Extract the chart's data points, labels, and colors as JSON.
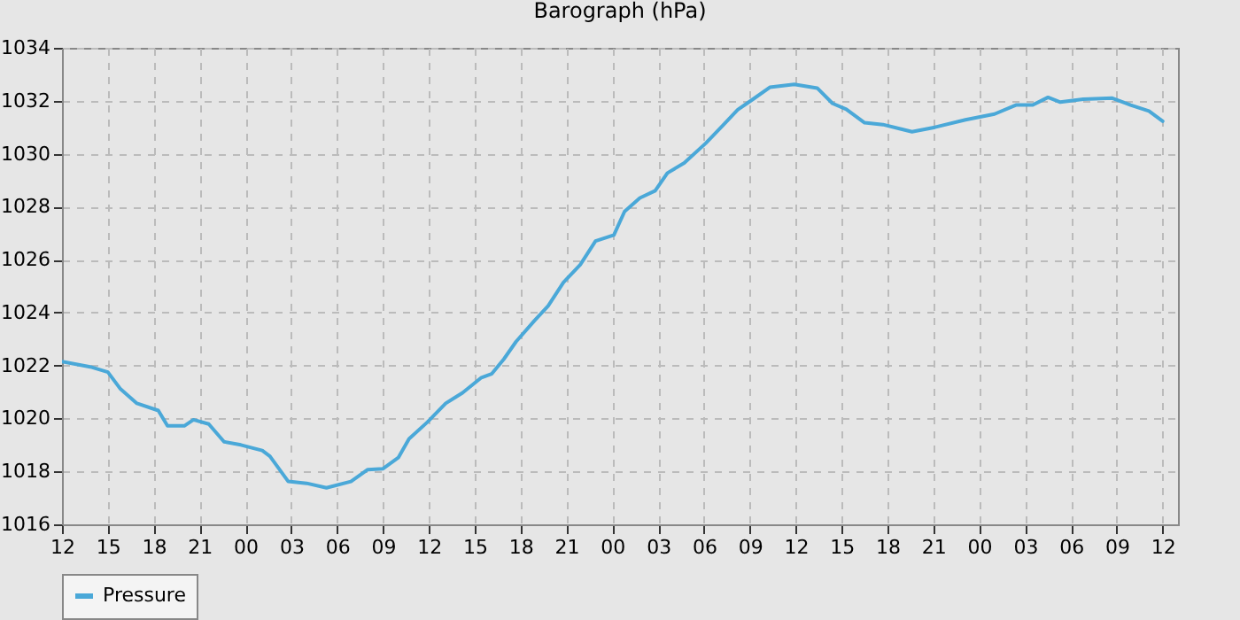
{
  "chart_data": {
    "type": "line",
    "title": "Barograph (hPa)",
    "x": [
      12,
      13.85,
      15,
      15.8,
      16.9,
      18.3,
      18.9,
      20.0,
      20.6,
      21.6,
      22.6,
      23.7,
      25.1,
      25.6,
      26.8,
      28.0,
      29.3,
      30.9,
      32.0,
      33.0,
      34.0,
      34.7,
      35.9,
      37.1,
      38.2,
      39.4,
      40.1,
      40.9,
      41.7,
      42.9,
      43.8,
      44.8,
      45.9,
      46.9,
      48.1,
      48.8,
      49.8,
      50.8,
      51.6,
      52.7,
      54.1,
      55.2,
      56.2,
      57.2,
      58.3,
      59.9,
      61.4,
      62.4,
      63.3,
      64.5,
      65.7,
      67.6,
      69.1,
      71.1,
      73.0,
      74.4,
      75.5,
      76.5,
      77.3,
      78.8,
      80.7,
      81.9,
      83.1,
      84.0
    ],
    "series": [
      {
        "name": "Pressure",
        "color": "#4aa8d8",
        "values": [
          1022.15,
          1021.95,
          1021.75,
          1021.13,
          1020.57,
          1020.3,
          1019.72,
          1019.72,
          1019.95,
          1019.79,
          1019.12,
          1019.0,
          1018.79,
          1018.57,
          1017.62,
          1017.55,
          1017.38,
          1017.62,
          1018.07,
          1018.1,
          1018.52,
          1019.23,
          1019.86,
          1020.57,
          1020.97,
          1021.53,
          1021.68,
          1022.24,
          1022.9,
          1023.69,
          1024.25,
          1025.14,
          1025.81,
          1026.7,
          1026.93,
          1027.82,
          1028.33,
          1028.6,
          1029.27,
          1029.65,
          1030.39,
          1031.05,
          1031.66,
          1032.06,
          1032.51,
          1032.62,
          1032.48,
          1031.9,
          1031.68,
          1031.17,
          1031.1,
          1030.83,
          1031.0,
          1031.28,
          1031.5,
          1031.84,
          1031.84,
          1032.13,
          1031.95,
          1032.06,
          1032.1,
          1031.84,
          1031.61,
          1031.23
        ]
      }
    ],
    "xlim": [
      12,
      85
    ],
    "xticks": [
      {
        "value": 12,
        "label": "12"
      },
      {
        "value": 15,
        "label": "15"
      },
      {
        "value": 18,
        "label": "18"
      },
      {
        "value": 21,
        "label": "21"
      },
      {
        "value": 24,
        "label": "00"
      },
      {
        "value": 27,
        "label": "03"
      },
      {
        "value": 30,
        "label": "06"
      },
      {
        "value": 33,
        "label": "09"
      },
      {
        "value": 36,
        "label": "12"
      },
      {
        "value": 39,
        "label": "15"
      },
      {
        "value": 42,
        "label": "18"
      },
      {
        "value": 45,
        "label": "21"
      },
      {
        "value": 48,
        "label": "00"
      },
      {
        "value": 51,
        "label": "03"
      },
      {
        "value": 54,
        "label": "06"
      },
      {
        "value": 57,
        "label": "09"
      },
      {
        "value": 60,
        "label": "12"
      },
      {
        "value": 63,
        "label": "15"
      },
      {
        "value": 66,
        "label": "18"
      },
      {
        "value": 69,
        "label": "21"
      },
      {
        "value": 72,
        "label": "00"
      },
      {
        "value": 75,
        "label": "03"
      },
      {
        "value": 78,
        "label": "06"
      },
      {
        "value": 81,
        "label": "09"
      },
      {
        "value": 84,
        "label": "12"
      }
    ],
    "ylim": [
      1016,
      1034
    ],
    "yticks": [
      1016,
      1018,
      1020,
      1022,
      1024,
      1026,
      1028,
      1030,
      1032,
      1034
    ],
    "grid": true,
    "legend": "bottom",
    "line_style": "solid"
  }
}
